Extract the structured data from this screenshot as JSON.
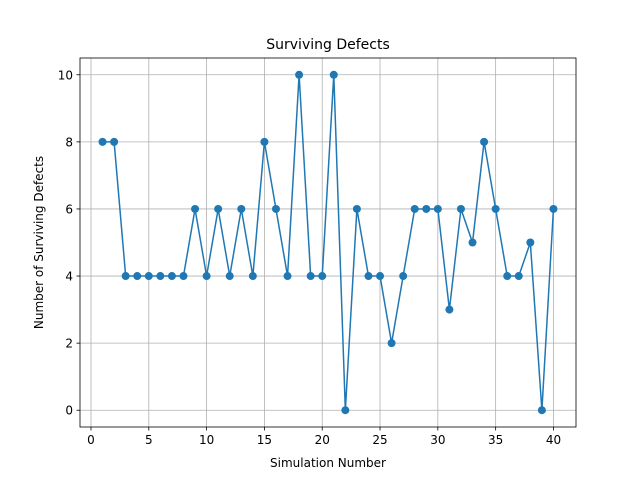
{
  "chart_data": {
    "type": "line",
    "title": "Surviving Defects",
    "xlabel": "Simulation Number",
    "ylabel": "Number of Surviving Defects",
    "xlim": [
      -0.95,
      41.95
    ],
    "ylim": [
      -0.5,
      10.5
    ],
    "xticks": [
      0,
      5,
      10,
      15,
      20,
      25,
      30,
      35,
      40
    ],
    "yticks": [
      0,
      2,
      4,
      6,
      8,
      10
    ],
    "grid": true,
    "series": [
      {
        "x": [
          1,
          2,
          3,
          4,
          5,
          6,
          7,
          8,
          9,
          10,
          11,
          12,
          13,
          14,
          15,
          16,
          17,
          18,
          19,
          20,
          21,
          22,
          23,
          24,
          25,
          26,
          27,
          28,
          29,
          30,
          31,
          32,
          33,
          34,
          35,
          36,
          37,
          38,
          39,
          40
        ],
        "values": [
          8,
          8,
          4,
          4,
          4,
          4,
          4,
          4,
          6,
          4,
          6,
          4,
          6,
          4,
          8,
          6,
          4,
          10,
          4,
          4,
          10,
          0,
          6,
          4,
          4,
          2,
          4,
          6,
          6,
          6,
          3,
          6,
          5,
          8,
          6,
          4,
          4,
          5,
          0,
          6
        ],
        "color": "#1f77b4",
        "marker": "circle"
      }
    ]
  }
}
